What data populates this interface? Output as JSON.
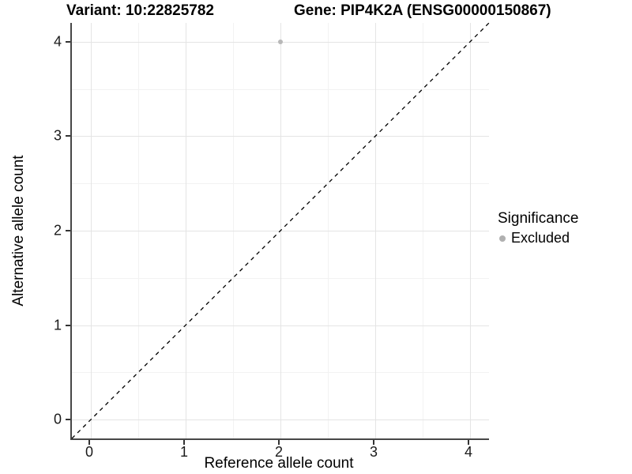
{
  "titles": {
    "variant": "Variant: 10:22825782",
    "gene": "Gene: PIP4K2A (ENSG00000150867)"
  },
  "chart_data": {
    "type": "scatter",
    "title_left": "Variant: 10:22825782",
    "title_right": "Gene: PIP4K2A (ENSG00000150867)",
    "xlabel": "Reference allele count",
    "ylabel": "Alternative allele count",
    "xlim": [
      -0.2,
      4.2
    ],
    "ylim": [
      -0.2,
      4.2
    ],
    "x_ticks": [
      0,
      1,
      2,
      3,
      4
    ],
    "y_ticks": [
      0,
      1,
      2,
      3,
      4
    ],
    "x_minor_ticks": [
      0.5,
      1.5,
      2.5,
      3.5
    ],
    "y_minor_ticks": [
      0.5,
      1.5,
      2.5,
      3.5
    ],
    "grid": "major-and-minor",
    "reference_line": {
      "type": "diagonal",
      "from": [
        -0.2,
        -0.2
      ],
      "to": [
        4.2,
        4.2
      ],
      "style": "dashed",
      "color": "#000000"
    },
    "series": [
      {
        "name": "Excluded",
        "points": [
          {
            "x": 2,
            "y": 4
          }
        ],
        "color": "#b8b8b8"
      }
    ],
    "legend": {
      "title": "Significance",
      "position": "right",
      "items": [
        {
          "label": "Excluded",
          "color": "#b0b0b0"
        }
      ]
    },
    "colors": {
      "grid_major": "#e4e4e4",
      "grid_minor": "#f2f2f2",
      "axis_line": "#474747",
      "tick_mark": "#333333",
      "background": "#ffffff"
    }
  }
}
